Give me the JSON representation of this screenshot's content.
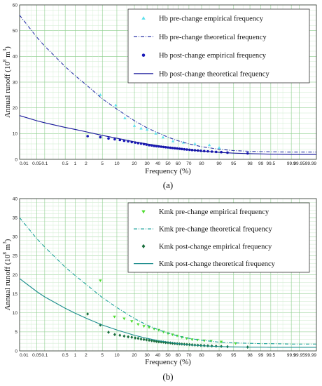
{
  "chart_data": [
    {
      "type": "scatter",
      "panel_label": "(a)",
      "xlabel": "Frequency (%)",
      "ylabel": "Annual runoff (10",
      "ylabel_sup": "8",
      "ylabel_unit": " m",
      "ylabel_sup2": "3",
      "ylabel_close": ")",
      "x_scale": "normal-probability",
      "x_ticks": [
        "0.01",
        "0.05",
        "0.1",
        "0.5",
        "1",
        "2",
        "5",
        "10",
        "20",
        "30",
        "40",
        "50",
        "60",
        "70",
        "80",
        "90",
        "95",
        "98",
        "99",
        "99.5",
        "99.9",
        "99.95",
        "99.99"
      ],
      "ylim": [
        0,
        60
      ],
      "y_ticks": [
        "0",
        "10",
        "20",
        "30",
        "40",
        "50",
        "60"
      ],
      "grid": true,
      "legend_position": "top-right",
      "colors": {
        "pre": "#5ce0ec",
        "pre_curve": "#2a34a8",
        "post": "#1818b8",
        "post_curve": "#16169a"
      },
      "series": [
        {
          "name": "Hb pre-change empirical frequency",
          "kind": "points",
          "marker": "triangle-up",
          "x": [
            4.5,
            9.5,
            14,
            20,
            25,
            30,
            38,
            45,
            55,
            65,
            75,
            85,
            90
          ],
          "y": [
            25,
            21,
            16,
            13,
            12,
            11.5,
            10,
            8.5,
            7,
            6.5,
            6,
            5.5,
            4.5
          ]
        },
        {
          "name": "Hb pre-change theoretical frequency",
          "kind": "curve",
          "style": "dashdot",
          "x": [
            0.01,
            0.05,
            0.1,
            0.5,
            1,
            2,
            5,
            10,
            20,
            30,
            40,
            50,
            60,
            70,
            80,
            90,
            95,
            98,
            99,
            99.5,
            99.9,
            99.95,
            99.99
          ],
          "y": [
            56,
            47.5,
            44,
            36,
            32.5,
            29,
            23.5,
            19.5,
            15,
            12.2,
            10.3,
            8.6,
            7.2,
            6,
            4.9,
            3.9,
            3.4,
            3.1,
            3,
            2.9,
            2.8,
            2.8,
            2.8
          ]
        },
        {
          "name": "Hb post-change empirical frequency",
          "kind": "points",
          "marker": "circle",
          "x": [
            2.2,
            4.5,
            6.8,
            9.1,
            11.4,
            13.6,
            15.9,
            18.2,
            20.5,
            22.7,
            25,
            27.3,
            29.5,
            31.8,
            34.1,
            36.4,
            38.6,
            40.9,
            43.2,
            45.5,
            47.7,
            50,
            52.3,
            54.5,
            56.8,
            59.1,
            61.4,
            63.6,
            65.9,
            68.2,
            70.5,
            72.7,
            75,
            77.3,
            79.5,
            81.8,
            84.1,
            86.4,
            88.6,
            90.9,
            93.2,
            97.7
          ],
          "y": [
            9,
            8.6,
            8.1,
            7.8,
            7.5,
            7.2,
            7,
            6.7,
            6.5,
            6.3,
            6.1,
            5.9,
            5.7,
            5.5,
            5.4,
            5.2,
            5.1,
            5,
            4.9,
            4.8,
            4.7,
            4.6,
            4.5,
            4.4,
            4.3,
            4.2,
            4.1,
            4,
            3.9,
            3.8,
            3.7,
            3.6,
            3.5,
            3.4,
            3.3,
            3.2,
            3.1,
            3,
            2.9,
            2.8,
            2.6,
            2.3
          ]
        },
        {
          "name": "Hb post-change theoretical frequency",
          "kind": "curve",
          "style": "solid",
          "x": [
            0.01,
            0.05,
            0.1,
            0.5,
            1,
            2,
            5,
            10,
            20,
            30,
            40,
            50,
            60,
            70,
            80,
            90,
            95,
            98,
            99,
            99.5,
            99.9,
            99.95,
            99.99
          ],
          "y": [
            17,
            15,
            14.2,
            12.4,
            11.6,
            10.7,
            9.3,
            8.2,
            6.8,
            6,
            5.3,
            4.7,
            4.2,
            3.7,
            3.2,
            2.7,
            2.4,
            2.2,
            2.1,
            2,
            1.9,
            1.9,
            1.9
          ]
        }
      ]
    },
    {
      "type": "scatter",
      "panel_label": "(b)",
      "xlabel": "Frequency (%)",
      "ylabel": "Annual runoff (10",
      "ylabel_sup": "8",
      "ylabel_unit": " m",
      "ylabel_sup2": "3",
      "ylabel_close": ")",
      "x_scale": "normal-probability",
      "x_ticks": [
        "0.01",
        "0.05",
        "0.1",
        "0.5",
        "1",
        "2",
        "5",
        "10",
        "20",
        "30",
        "40",
        "50",
        "60",
        "70",
        "80",
        "90",
        "95",
        "98",
        "99",
        "99.5",
        "99.9",
        "99.95",
        "99.99"
      ],
      "ylim": [
        0,
        40
      ],
      "y_ticks": [
        "0",
        "5",
        "10",
        "15",
        "20",
        "25",
        "30",
        "35",
        "40"
      ],
      "grid": true,
      "legend_position": "top-right",
      "colors": {
        "pre": "#4cdc2c",
        "pre_curve": "#1aa09a",
        "post": "#186e3c",
        "post_curve": "#1a8c8c"
      },
      "series": [
        {
          "name": "Kmk pre-change empirical frequency",
          "kind": "points",
          "marker": "triangle-down",
          "x": [
            4.5,
            9,
            13.6,
            18.2,
            22.7,
            27.3,
            31.8,
            36.4,
            40.9,
            45.5,
            50,
            54.5,
            59,
            63.6,
            68,
            72.7,
            77,
            81.8,
            86,
            90.9,
            95.5
          ],
          "y": [
            18.5,
            9,
            8.5,
            7.8,
            7,
            6.5,
            6.2,
            5.8,
            5.5,
            5,
            4.6,
            4.3,
            4,
            3.6,
            3.3,
            3,
            2.9,
            2.7,
            2.6,
            2.4,
            2
          ]
        },
        {
          "name": "Kmk pre-change theoretical frequency",
          "kind": "curve",
          "style": "dashdot",
          "x": [
            0.01,
            0.05,
            0.1,
            0.5,
            1,
            2,
            5,
            10,
            20,
            30,
            40,
            50,
            60,
            70,
            80,
            90,
            95,
            98,
            99,
            99.5,
            99.9,
            99.95,
            99.99
          ],
          "y": [
            35,
            29.5,
            27.3,
            22,
            19.8,
            17.5,
            14,
            11.4,
            8.5,
            6.8,
            5.6,
            4.7,
            3.9,
            3.3,
            2.8,
            2.3,
            2.1,
            2,
            1.9,
            1.9,
            1.8,
            1.8,
            1.8
          ]
        },
        {
          "name": "Kmk post-change empirical frequency",
          "kind": "points",
          "marker": "diamond",
          "x": [
            2.2,
            4.5,
            6.8,
            9.1,
            11.4,
            13.6,
            15.9,
            18.2,
            20.5,
            22.7,
            25,
            27.3,
            29.5,
            31.8,
            34.1,
            36.4,
            38.6,
            40.9,
            43.2,
            45.5,
            47.7,
            50,
            52.3,
            54.5,
            56.8,
            59.1,
            61.4,
            63.6,
            65.9,
            68.2,
            70.5,
            72.7,
            75,
            77.3,
            79.5,
            81.8,
            84.1,
            86.4,
            88.6,
            90.9,
            93.2,
            97.7
          ],
          "y": [
            9.7,
            6.8,
            4.9,
            4.3,
            4.1,
            3.9,
            3.7,
            3.6,
            3.4,
            3.3,
            3.1,
            3,
            2.9,
            2.8,
            2.7,
            2.6,
            2.5,
            2.4,
            2.35,
            2.3,
            2.2,
            2.15,
            2.1,
            2,
            1.95,
            1.9,
            1.85,
            1.8,
            1.75,
            1.7,
            1.65,
            1.6,
            1.55,
            1.5,
            1.45,
            1.4,
            1.35,
            1.3,
            1.25,
            1.2,
            1.1,
            1
          ]
        },
        {
          "name": "Kmk post-change theoretical frequency",
          "kind": "curve",
          "style": "solid",
          "x": [
            0.01,
            0.05,
            0.1,
            0.5,
            1,
            2,
            5,
            10,
            20,
            30,
            40,
            50,
            60,
            70,
            80,
            90,
            95,
            98,
            99,
            99.5,
            99.9,
            99.95,
            99.99
          ],
          "y": [
            19,
            15.6,
            14.2,
            11.2,
            9.9,
            8.6,
            6.8,
            5.5,
            4.1,
            3.3,
            2.7,
            2.3,
            1.9,
            1.6,
            1.35,
            1.15,
            1.05,
            1,
            1,
            0.95,
            0.95,
            0.95,
            0.95
          ]
        }
      ]
    }
  ]
}
